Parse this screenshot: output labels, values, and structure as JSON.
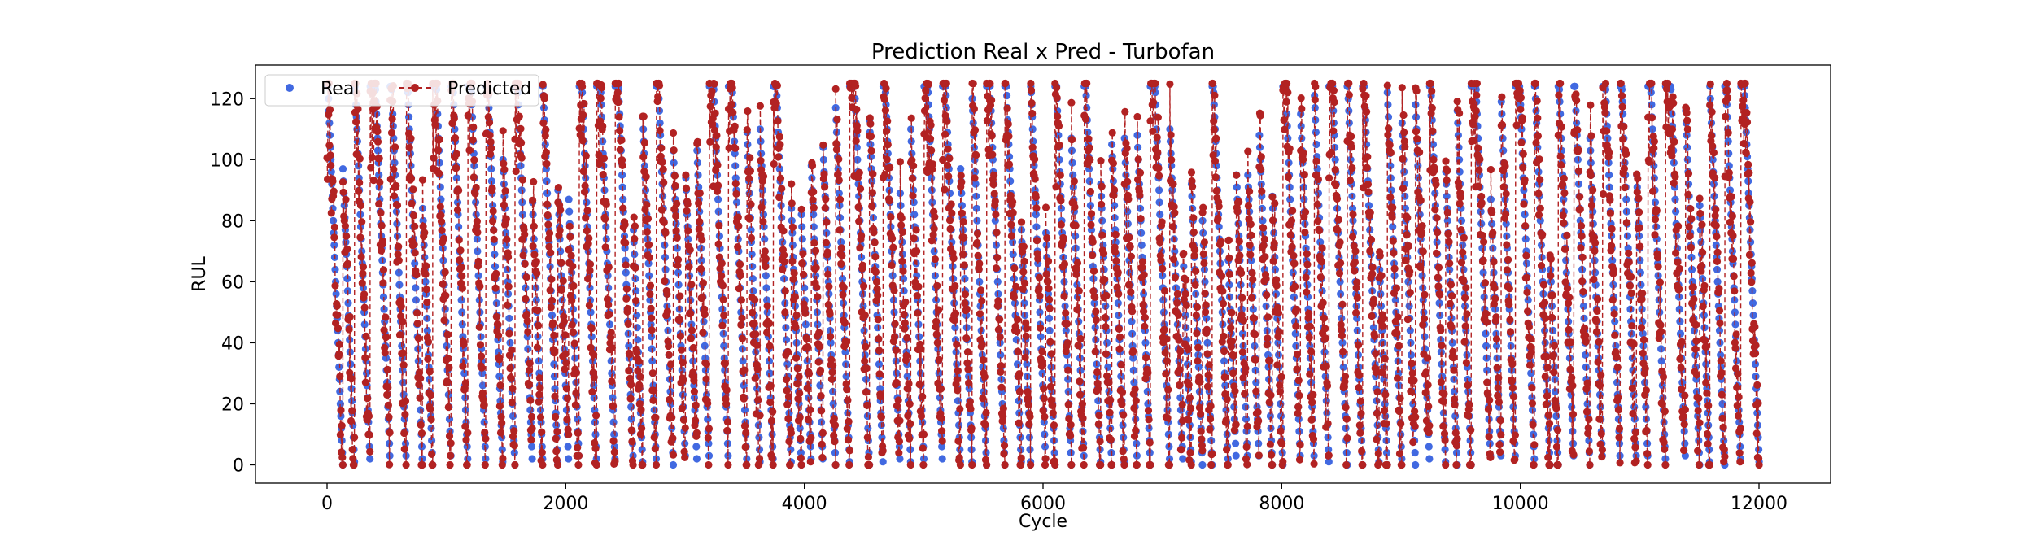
{
  "chart_data": {
    "type": "scatter",
    "title": "Prediction Real x Pred - Turbofan",
    "xlabel": "Cycle",
    "ylabel": "RUL",
    "xlim": [
      -600,
      12600
    ],
    "ylim": [
      -6,
      131
    ],
    "xticks": [
      0,
      2000,
      4000,
      6000,
      8000,
      10000,
      12000
    ],
    "yticks": [
      0,
      20,
      40,
      60,
      80,
      100,
      120
    ],
    "grid": false,
    "legend_position": "top-left",
    "n_units": 100,
    "total_cycles": 12000,
    "rul_cap": 125,
    "series": [
      {
        "name": "Real",
        "color": "#4169e1",
        "marker": "circle",
        "line": "none"
      },
      {
        "name": "Predicted",
        "color": "#b22222",
        "marker": "circle",
        "line": "dashed"
      }
    ]
  }
}
